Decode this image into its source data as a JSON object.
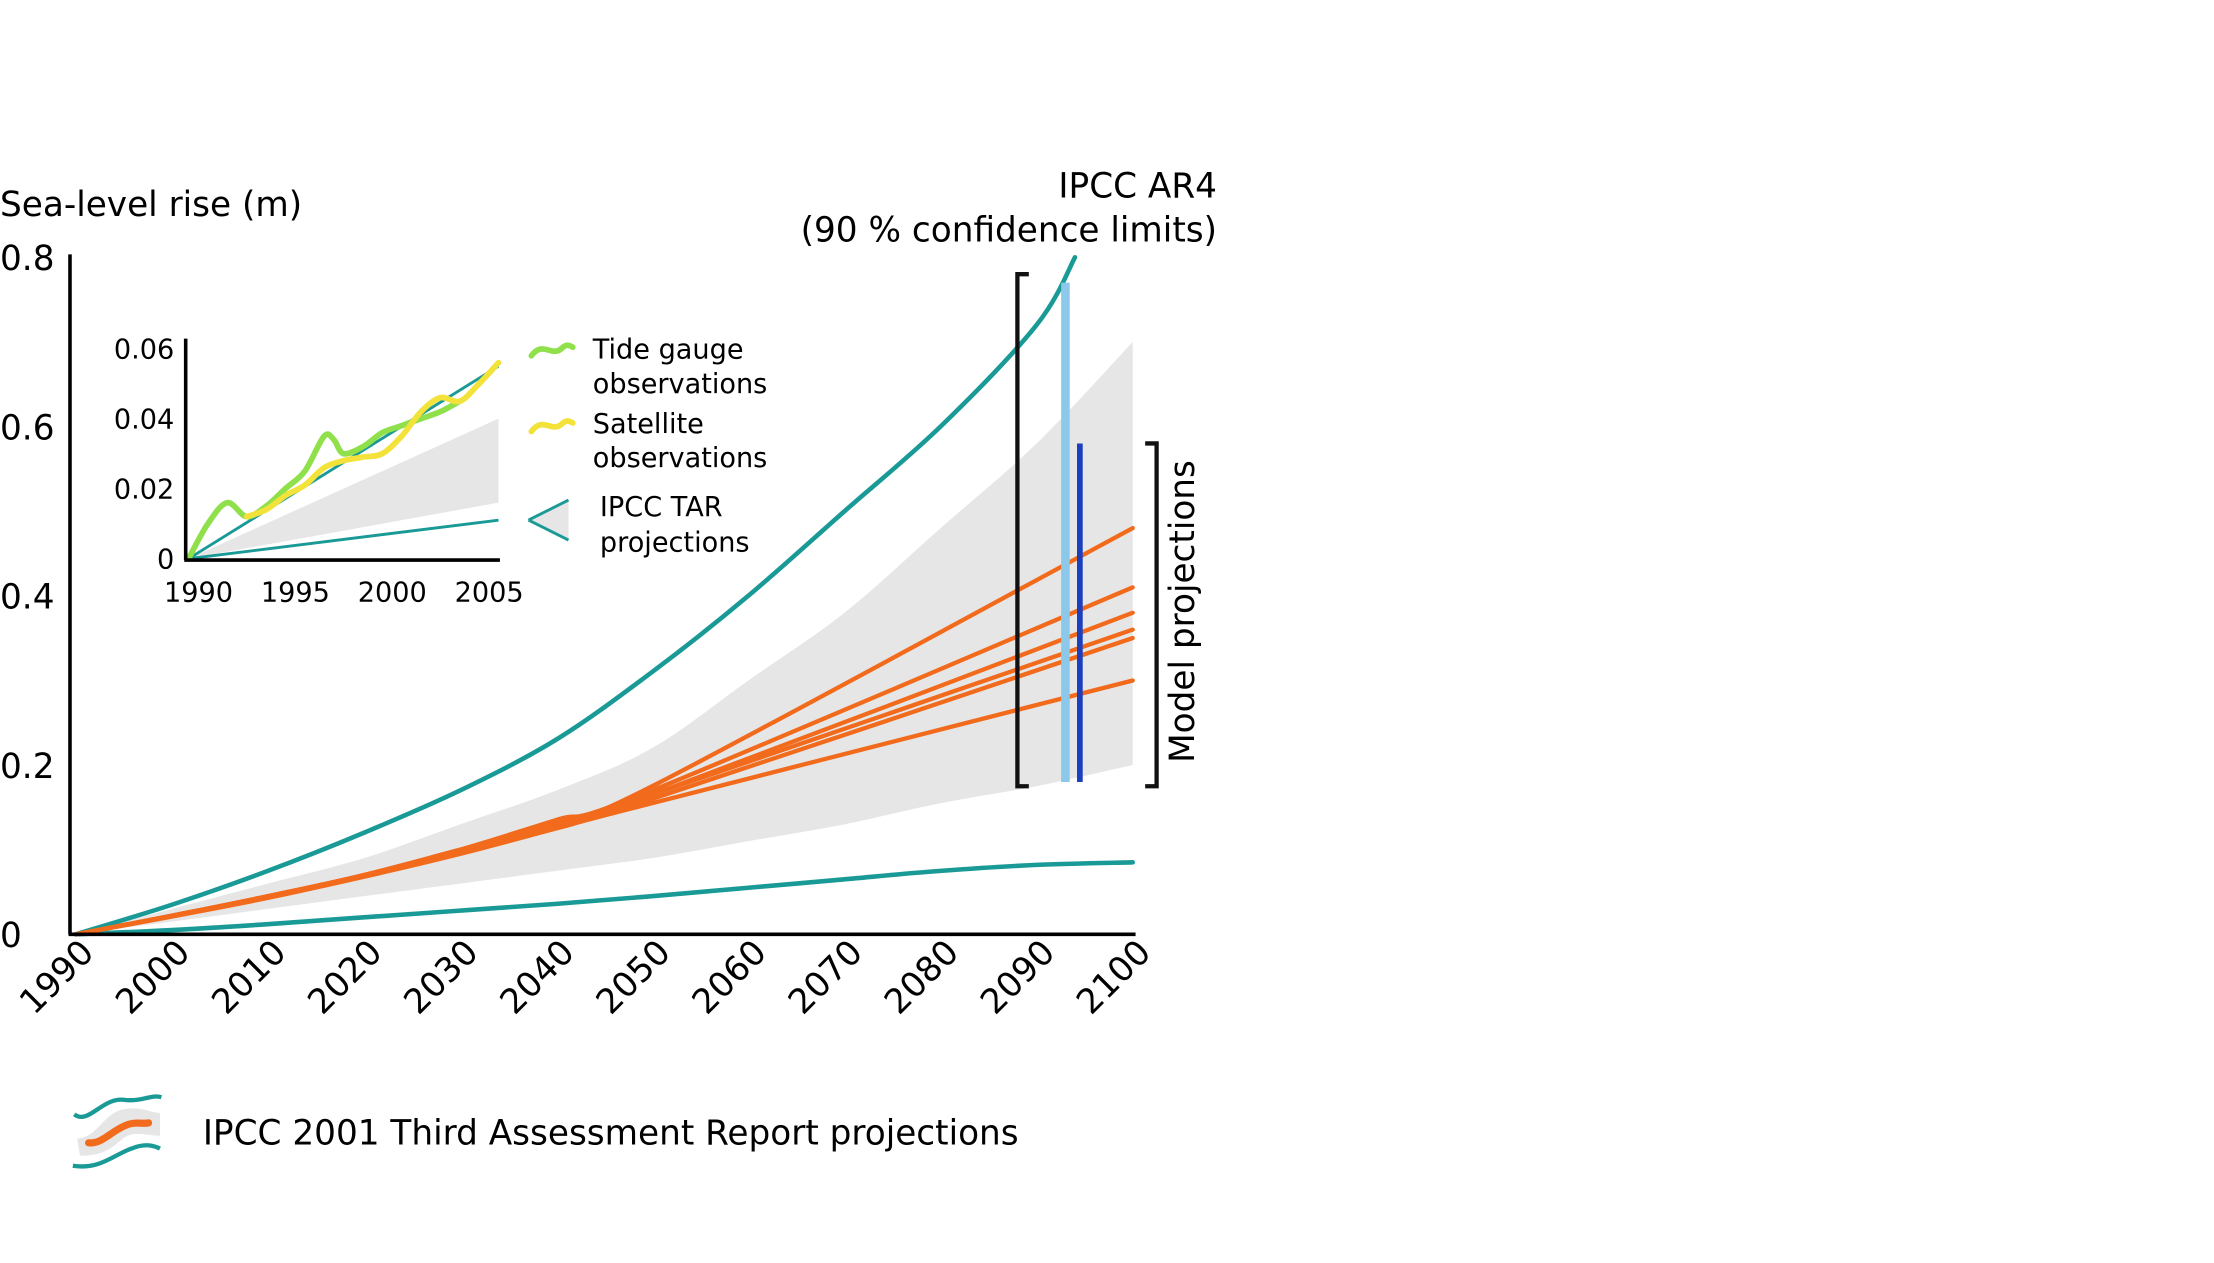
{
  "colors": {
    "envelope_line": "#1a9a96",
    "model_line": "#f26a1b",
    "band": "#e6e6e6",
    "tide_gauge": "#8fe04a",
    "satellite": "#f2e23a",
    "ar4_light": "#8cc8ea",
    "ar4_dark": "#1c3fbf",
    "axis": "#000000"
  },
  "chart_data": [
    {
      "type": "line",
      "title": "",
      "ylabel": "Sea-level rise (m)",
      "xlabel": "",
      "xlim": [
        1990,
        2100
      ],
      "ylim": [
        0,
        0.8
      ],
      "x_ticks": [
        "1990",
        "2000",
        "2010",
        "2020",
        "2030",
        "2040",
        "2050",
        "2060",
        "2070",
        "2080",
        "2090",
        "2100"
      ],
      "y_ticks": [
        "0",
        "0.2",
        "0.4",
        "0.6",
        "0.8"
      ],
      "grid": false,
      "band": {
        "x": [
          1990,
          2000,
          2010,
          2020,
          2030,
          2040,
          2050,
          2060,
          2070,
          2080,
          2090,
          2100
        ],
        "lower": [
          0,
          0.015,
          0.03,
          0.045,
          0.06,
          0.075,
          0.09,
          0.11,
          0.13,
          0.155,
          0.175,
          0.2
        ],
        "upper": [
          0,
          0.03,
          0.06,
          0.09,
          0.13,
          0.17,
          0.22,
          0.3,
          0.38,
          0.48,
          0.58,
          0.7
        ]
      },
      "envelope": [
        {
          "x": [
            1990,
            2000,
            2010,
            2020,
            2030,
            2040,
            2050,
            2060,
            2070,
            2080,
            2090,
            2094
          ],
          "values": [
            0,
            0.035,
            0.075,
            0.12,
            0.17,
            0.23,
            0.31,
            0.4,
            0.5,
            0.6,
            0.72,
            0.8
          ]
        },
        {
          "x": [
            1990,
            2000,
            2010,
            2020,
            2030,
            2040,
            2050,
            2060,
            2070,
            2080,
            2090,
            2100
          ],
          "values": [
            0,
            0.005,
            0.012,
            0.02,
            0.028,
            0.036,
            0.045,
            0.055,
            0.065,
            0.075,
            0.082,
            0.085
          ]
        }
      ],
      "series": [
        {
          "x": [
            1990,
            2000,
            2010,
            2020,
            2030,
            2040,
            2050,
            2100
          ],
          "values": [
            0,
            0.022,
            0.045,
            0.07,
            0.1,
            0.135,
            0.175,
            0.48
          ]
        },
        {
          "x": [
            1990,
            2000,
            2010,
            2020,
            2030,
            2040,
            2050,
            2100
          ],
          "values": [
            0,
            0.022,
            0.045,
            0.07,
            0.1,
            0.135,
            0.17,
            0.41
          ]
        },
        {
          "x": [
            1990,
            2000,
            2010,
            2020,
            2030,
            2040,
            2050,
            2100
          ],
          "values": [
            0,
            0.022,
            0.045,
            0.07,
            0.1,
            0.13,
            0.165,
            0.38
          ]
        },
        {
          "x": [
            1990,
            2000,
            2010,
            2020,
            2030,
            2040,
            2050,
            2100
          ],
          "values": [
            0,
            0.022,
            0.045,
            0.07,
            0.1,
            0.13,
            0.165,
            0.36
          ]
        },
        {
          "x": [
            1990,
            2000,
            2010,
            2020,
            2030,
            2040,
            2050,
            2100
          ],
          "values": [
            0,
            0.022,
            0.045,
            0.07,
            0.098,
            0.128,
            0.16,
            0.35
          ]
        },
        {
          "x": [
            1990,
            2000,
            2010,
            2020,
            2030,
            2040,
            2050,
            2100
          ],
          "values": [
            0,
            0.021,
            0.043,
            0.068,
            0.095,
            0.125,
            0.155,
            0.3
          ]
        }
      ],
      "ar4_bars": [
        {
          "x": 2093,
          "low": 0.18,
          "high": 0.77
        },
        {
          "x": 2094.5,
          "low": 0.18,
          "high": 0.58
        }
      ],
      "bracket_ar4": {
        "x": 2088,
        "low": 0.175,
        "high": 0.78
      },
      "bracket_model": {
        "x": 2101,
        "low": 0.175,
        "high": 0.58
      },
      "annotations": {
        "ar4_line1": "IPCC AR4",
        "ar4_line2": "(90 % confidence limits)",
        "model": "Model projections"
      }
    },
    {
      "type": "line",
      "title": "",
      "xlim": [
        1990,
        2006
      ],
      "ylim": [
        0,
        0.06
      ],
      "x_ticks": [
        "1990",
        "1995",
        "2000",
        "2005"
      ],
      "y_ticks": [
        "0",
        "0.02",
        "0.04",
        "0.06"
      ],
      "band": {
        "x": [
          1990,
          2006
        ],
        "lower": [
          0,
          0.016
        ],
        "upper": [
          0,
          0.04
        ]
      },
      "envelope": [
        {
          "x": [
            1990,
            2006
          ],
          "values": [
            0,
            0.055
          ]
        },
        {
          "x": [
            1990,
            2006
          ],
          "values": [
            0,
            0.011
          ]
        }
      ],
      "series": [
        {
          "name": "Tide gauge observations",
          "x": [
            1990,
            1991,
            1992,
            1993,
            1994,
            1995,
            1996,
            1997,
            1997.5,
            1998,
            1999,
            2000,
            2001,
            2002,
            2003,
            2004
          ],
          "values": [
            0,
            0.01,
            0.016,
            0.012,
            0.015,
            0.02,
            0.025,
            0.035,
            0.034,
            0.03,
            0.032,
            0.036,
            0.038,
            0.04,
            0.042,
            0.045
          ]
        },
        {
          "name": "Satellite observations",
          "x": [
            1993,
            1994,
            1995,
            1996,
            1997,
            1998,
            1999,
            2000,
            2001,
            2002,
            2003,
            2004,
            2005,
            2006
          ],
          "values": [
            0.012,
            0.014,
            0.018,
            0.021,
            0.026,
            0.028,
            0.029,
            0.03,
            0.035,
            0.042,
            0.046,
            0.045,
            0.05,
            0.056
          ]
        }
      ]
    }
  ],
  "legend": {
    "inset_items": [
      {
        "line1": "Tide gauge",
        "line2": "observations"
      },
      {
        "line1": "Satellite",
        "line2": "observations"
      },
      {
        "line1": "IPCC TAR",
        "line2": "projections"
      }
    ],
    "bottom_label": "IPCC 2001 Third Assessment Report projections"
  }
}
